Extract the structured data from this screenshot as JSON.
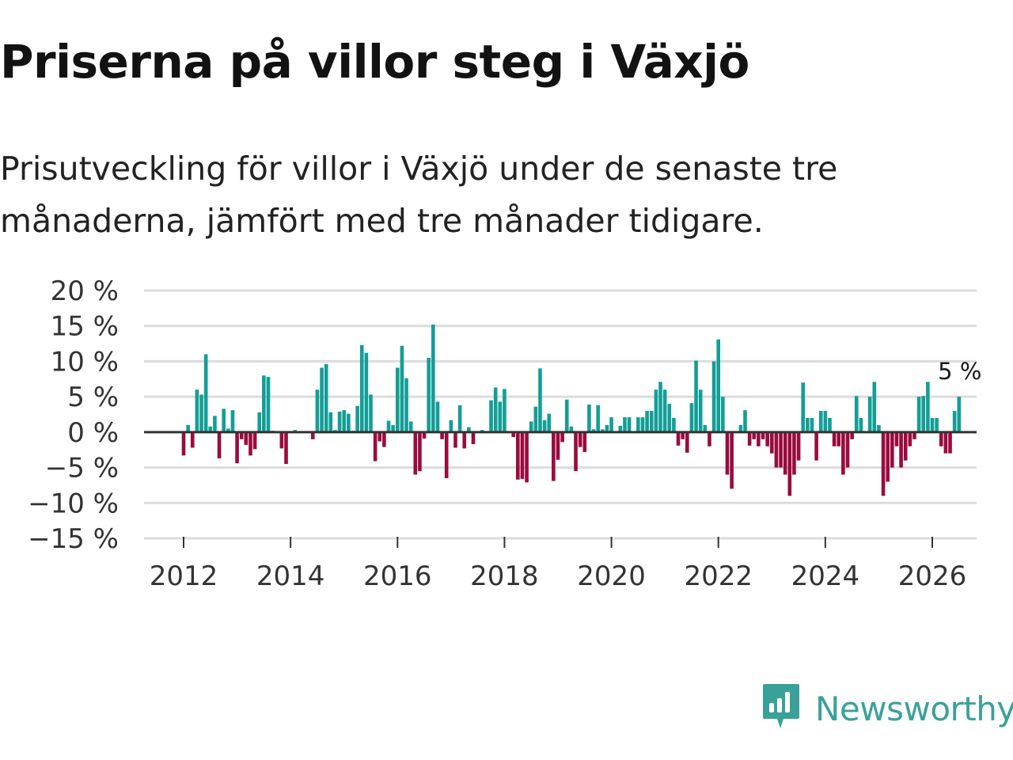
{
  "title": "Priserna på villor steg i Växjö",
  "subtitle": "Prisutveckling för villor i Växjö under de senaste tre månaderna, jämfört med tre månader tidigare.",
  "brand": {
    "name": "Newsworthy",
    "icon": "newsworthy-logo-icon"
  },
  "colors": {
    "positive": "#139e96",
    "negative": "#9a0b3e",
    "grid": "#dcdcdc",
    "zero": "#333333",
    "brand": "#3aa198"
  },
  "chart_data": {
    "type": "bar",
    "title": "Priserna på villor steg i Växjö",
    "xlabel": "",
    "ylabel": "",
    "ylim": [
      -15,
      20
    ],
    "y_ticks": [
      20,
      15,
      10,
      5,
      0,
      -5,
      -10,
      -15
    ],
    "y_tick_labels": [
      "20 %",
      "15 %",
      "10 %",
      "5 %",
      "0 %",
      "−5 %",
      "−10 %",
      "−15 %"
    ],
    "x_ticks": [
      2012,
      2014,
      2016,
      2018,
      2020,
      2022,
      2024,
      2026
    ],
    "x_tick_labels": [
      "2012",
      "2014",
      "2016",
      "2018",
      "2020",
      "2022",
      "2024",
      "2026"
    ],
    "start": "2012-01",
    "frequency": "monthly",
    "unit": "%",
    "last_value_label": "5 %",
    "values": [
      -3.3,
      1.0,
      -2.2,
      6.0,
      5.3,
      11.0,
      0.8,
      2.3,
      -3.7,
      3.3,
      0.5,
      3.1,
      -4.4,
      -1.0,
      -1.8,
      -3.3,
      -2.4,
      2.8,
      8.0,
      7.8,
      0.2,
      0.0,
      -2.3,
      -4.5,
      0.0,
      0.3,
      0.0,
      0.0,
      0.0,
      -1.0,
      6.0,
      9.1,
      9.6,
      2.8,
      0.3,
      2.9,
      3.1,
      2.6,
      0.2,
      3.7,
      12.3,
      11.2,
      5.3,
      -4.1,
      -1.3,
      -2.1,
      1.6,
      1.0,
      9.1,
      12.2,
      7.6,
      1.5,
      -6.0,
      -5.5,
      -0.9,
      10.5,
      15.2,
      4.3,
      -1.0,
      -6.5,
      1.7,
      -2.2,
      3.8,
      -2.3,
      0.7,
      -1.7,
      0.0,
      0.3,
      0.0,
      4.5,
      6.3,
      4.3,
      6.1,
      0.1,
      -0.7,
      -6.7,
      -6.6,
      -7.1,
      1.5,
      3.6,
      9.0,
      1.7,
      2.6,
      -6.9,
      -3.9,
      -1.4,
      4.6,
      0.8,
      -5.5,
      -2.1,
      -2.8,
      3.9,
      0.4,
      3.8,
      0.4,
      1.0,
      2.1,
      0.0,
      0.9,
      2.1,
      2.1,
      0.0,
      2.1,
      2.1,
      3.0,
      3.0,
      6.0,
      7.1,
      6.0,
      4.0,
      2.0,
      -1.9,
      -1.0,
      -2.9,
      4.1,
      10.1,
      6.0,
      1.0,
      -2.0,
      10.0,
      13.1,
      5.0,
      -6.0,
      -8.0,
      0.0,
      1.0,
      3.1,
      -1.9,
      -1.0,
      -2.0,
      -1.0,
      -2.0,
      -3.0,
      -5.0,
      -5.0,
      -6.0,
      -9.0,
      -6.0,
      -4.0,
      7.0,
      2.0,
      2.0,
      -4.0,
      3.0,
      3.0,
      2.0,
      -2.0,
      -2.0,
      -6.0,
      -5.0,
      -1.0,
      5.1,
      2.0,
      -0.1,
      5.0,
      7.1,
      1.0,
      -9.0,
      -7.0,
      -5.0,
      -2.0,
      -5.0,
      -4.0,
      -2.0,
      -1.0,
      5.0,
      5.1,
      7.1,
      2.0,
      2.0,
      -2.0,
      -3.0,
      -3.0,
      3.0,
      5.0
    ]
  }
}
